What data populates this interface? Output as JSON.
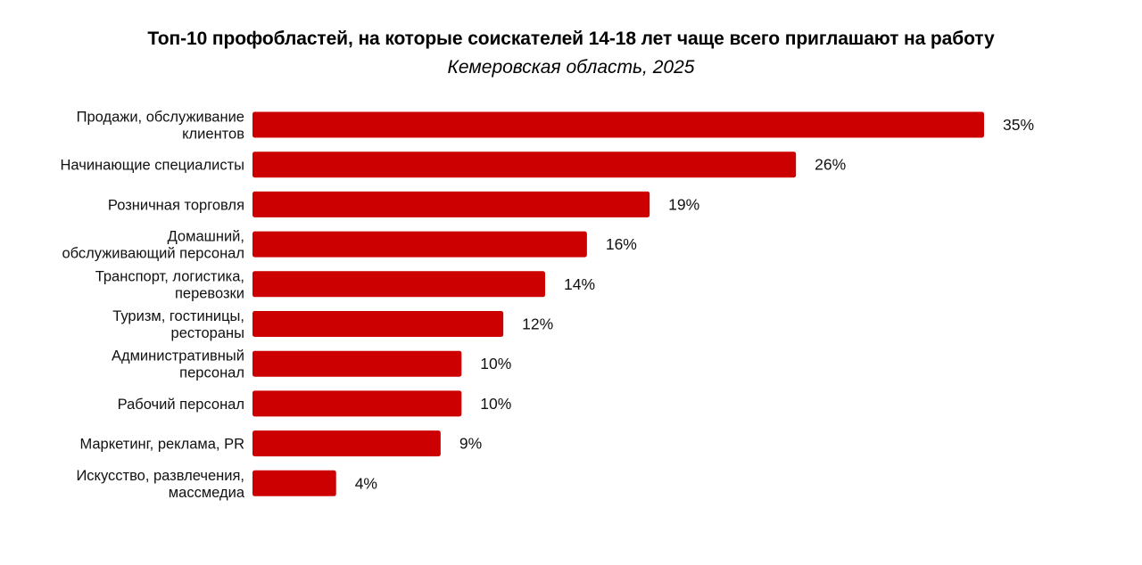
{
  "chart_data": {
    "type": "bar",
    "orientation": "horizontal",
    "title": "Топ-10 профобластей, на которые соискателей 14-18 лет чаще всего приглашают на работу",
    "subtitle": "Кемеровская область, 2025",
    "categories": [
      [
        "Продажи, обслуживание",
        "клиентов"
      ],
      [
        "Начинающие специалисты"
      ],
      [
        "Розничная торговля"
      ],
      [
        "Домашний,",
        "обслуживающий персонал"
      ],
      [
        "Транспорт, логистика,",
        "перевозки"
      ],
      [
        "Туризм, гостиницы,",
        "рестораны"
      ],
      [
        "Административный",
        "персонал"
      ],
      [
        "Рабочий персонал"
      ],
      [
        "Маркетинг, реклама, PR"
      ],
      [
        "Искусство, развлечения,",
        "массмедиа"
      ]
    ],
    "values": [
      35,
      26,
      19,
      16,
      14,
      12,
      10,
      10,
      9,
      4
    ],
    "value_labels": [
      "35%",
      "26%",
      "19%",
      "16%",
      "14%",
      "12%",
      "10%",
      "10%",
      "9%",
      "4%"
    ],
    "bar_color": "#cc0000",
    "xlim": [
      0,
      35
    ],
    "grid": false,
    "legend": "none"
  }
}
